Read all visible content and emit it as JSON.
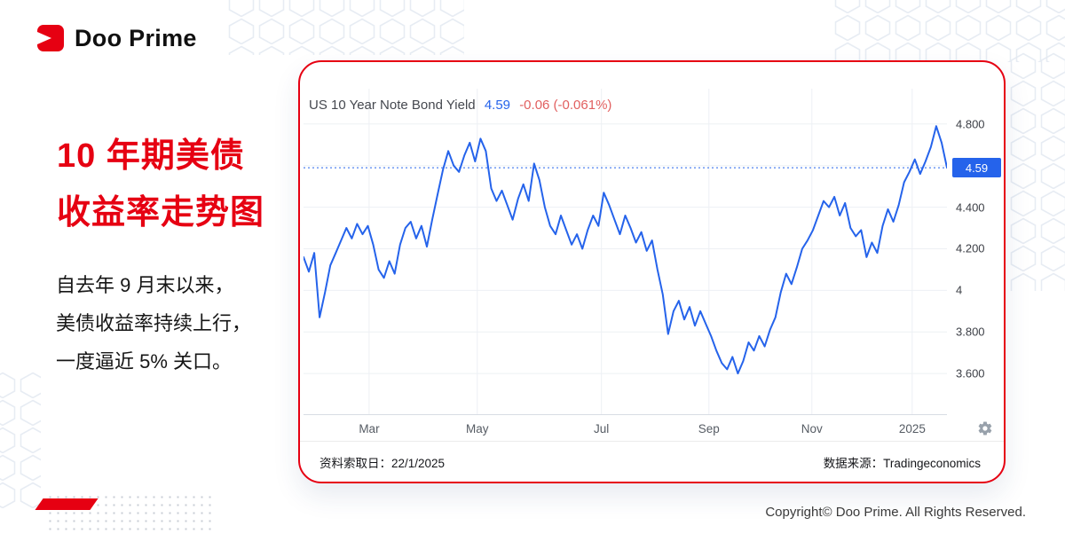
{
  "brand": {
    "name": "Doo Prime"
  },
  "headline": {
    "line1": "10 年期美债",
    "line2": "收益率走势图"
  },
  "intro": {
    "line1": "自去年 9 月末以来，",
    "line2": "美债收益率持续上行，",
    "line3": "一度逼近 5% 关口。"
  },
  "card": {
    "title": "US 10 Year Note Bond Yield",
    "price": "4.59",
    "change": "-0.06 (-0.061%)",
    "badge": "4.59",
    "footer_left": "资料索取日：22/1/2025",
    "footer_right": "数据来源：Tradingeconomics"
  },
  "page_footer": {
    "copyright": "Copyright© Doo Prime. All Rights Reserved."
  },
  "icons": {
    "gear": "settings-gear-icon",
    "logo_mark": "doo-prime-logo-mark"
  },
  "colors": {
    "brand_red": "#e60012",
    "line_blue": "#2563eb",
    "change_red": "#e15f5f",
    "grid_gray": "#edf0f4"
  },
  "chart_data": {
    "type": "line",
    "title": "US 10 Year Note Bond Yield",
    "current": 4.59,
    "change": -0.06,
    "change_pct": "-0.061%",
    "ylim": [
      3.4,
      4.97
    ],
    "grid": true,
    "legend_position": "none",
    "xlabel": "",
    "ylabel": "",
    "yticks": [
      {
        "v": 3.6,
        "label": "3.600"
      },
      {
        "v": 3.8,
        "label": "3.800"
      },
      {
        "v": 4.0,
        "label": "4"
      },
      {
        "v": 4.2,
        "label": "4.200"
      },
      {
        "v": 4.4,
        "label": "4.400"
      },
      {
        "v": 4.6,
        "label": ""
      },
      {
        "v": 4.8,
        "label": "4.800"
      }
    ],
    "xticks": [
      {
        "label": "Mar",
        "pos": 0.102
      },
      {
        "label": "May",
        "pos": 0.27
      },
      {
        "label": "Jul",
        "pos": 0.463
      },
      {
        "label": "Sep",
        "pos": 0.63
      },
      {
        "label": "Nov",
        "pos": 0.79
      },
      {
        "label": "2025",
        "pos": 0.946
      }
    ],
    "values": [
      4.16,
      4.09,
      4.18,
      3.87,
      3.99,
      4.12,
      4.18,
      4.24,
      4.3,
      4.25,
      4.32,
      4.27,
      4.31,
      4.22,
      4.1,
      4.06,
      4.14,
      4.08,
      4.22,
      4.3,
      4.33,
      4.25,
      4.31,
      4.21,
      4.34,
      4.46,
      4.58,
      4.67,
      4.6,
      4.57,
      4.65,
      4.71,
      4.62,
      4.73,
      4.67,
      4.49,
      4.43,
      4.48,
      4.41,
      4.34,
      4.44,
      4.51,
      4.43,
      4.61,
      4.53,
      4.4,
      4.31,
      4.27,
      4.36,
      4.29,
      4.22,
      4.27,
      4.2,
      4.29,
      4.36,
      4.31,
      4.47,
      4.41,
      4.34,
      4.27,
      4.36,
      4.3,
      4.23,
      4.28,
      4.19,
      4.24,
      4.1,
      3.98,
      3.79,
      3.9,
      3.95,
      3.86,
      3.92,
      3.83,
      3.9,
      3.84,
      3.78,
      3.71,
      3.65,
      3.62,
      3.68,
      3.6,
      3.66,
      3.75,
      3.71,
      3.78,
      3.73,
      3.81,
      3.87,
      3.99,
      4.08,
      4.03,
      4.11,
      4.2,
      4.24,
      4.29,
      4.36,
      4.43,
      4.4,
      4.45,
      4.36,
      4.42,
      4.3,
      4.26,
      4.29,
      4.16,
      4.23,
      4.18,
      4.31,
      4.39,
      4.33,
      4.41,
      4.52,
      4.57,
      4.63,
      4.56,
      4.62,
      4.69,
      4.79,
      4.71,
      4.59
    ]
  }
}
